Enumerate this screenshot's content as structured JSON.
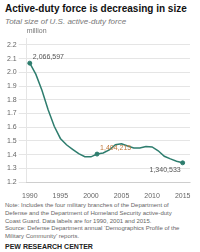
{
  "chart_data": {
    "type": "line",
    "title": "Active-duty force is decreasing in size",
    "subtitle": "Total size of U.S. active-duty force",
    "ylabel": "million",
    "color": "#2e7d6e",
    "x": [
      1990,
      1991,
      1992,
      1993,
      1994,
      1995,
      1996,
      1997,
      1998,
      1999,
      2000,
      2001,
      2002,
      2003,
      2004,
      2005,
      2006,
      2007,
      2008,
      2009,
      2010,
      2011,
      2012,
      2013,
      2014,
      2015
    ],
    "values": [
      2.066597,
      1.985,
      1.868,
      1.728,
      1.607,
      1.518,
      1.472,
      1.439,
      1.407,
      1.385,
      1.384,
      1.404215,
      1.412,
      1.434,
      1.472,
      1.479,
      1.463,
      1.449,
      1.449,
      1.459,
      1.456,
      1.428,
      1.388,
      1.369,
      1.352,
      1.340533
    ],
    "annotations": [
      {
        "x": 1990,
        "y": 2.066597,
        "label": "2,066,597",
        "color": "#555555"
      },
      {
        "x": 2001,
        "y": 1.404215,
        "label": "1,404,215",
        "color": "#c0783c"
      },
      {
        "x": 2015,
        "y": 1.340533,
        "label": "1,340,533",
        "color": "#555555"
      }
    ],
    "xlim": [
      1989.5,
      2016.2
    ],
    "xticks": [
      1990,
      1995,
      2000,
      2005,
      2010,
      2015
    ],
    "ylim": [
      1.2,
      2.25
    ],
    "yticks": [
      1.2,
      1.3,
      1.4,
      1.5,
      1.6,
      1.7,
      1.8,
      1.9,
      {
        "value": 2.0,
        "label": "2.0"
      },
      2.1,
      2.2
    ],
    "grid": true,
    "note": "Note: Includes the four military branches of the Department of\nDefense and the Department of Homeland Security active-duty\nCoast Guard. Data labels are for 1990, 2001 and 2015.\nSource: Defense Department annual ‘Demographics Profile of the\nMilitary Community’ reports.",
    "footer": "PEW RESEARCH CENTER"
  }
}
